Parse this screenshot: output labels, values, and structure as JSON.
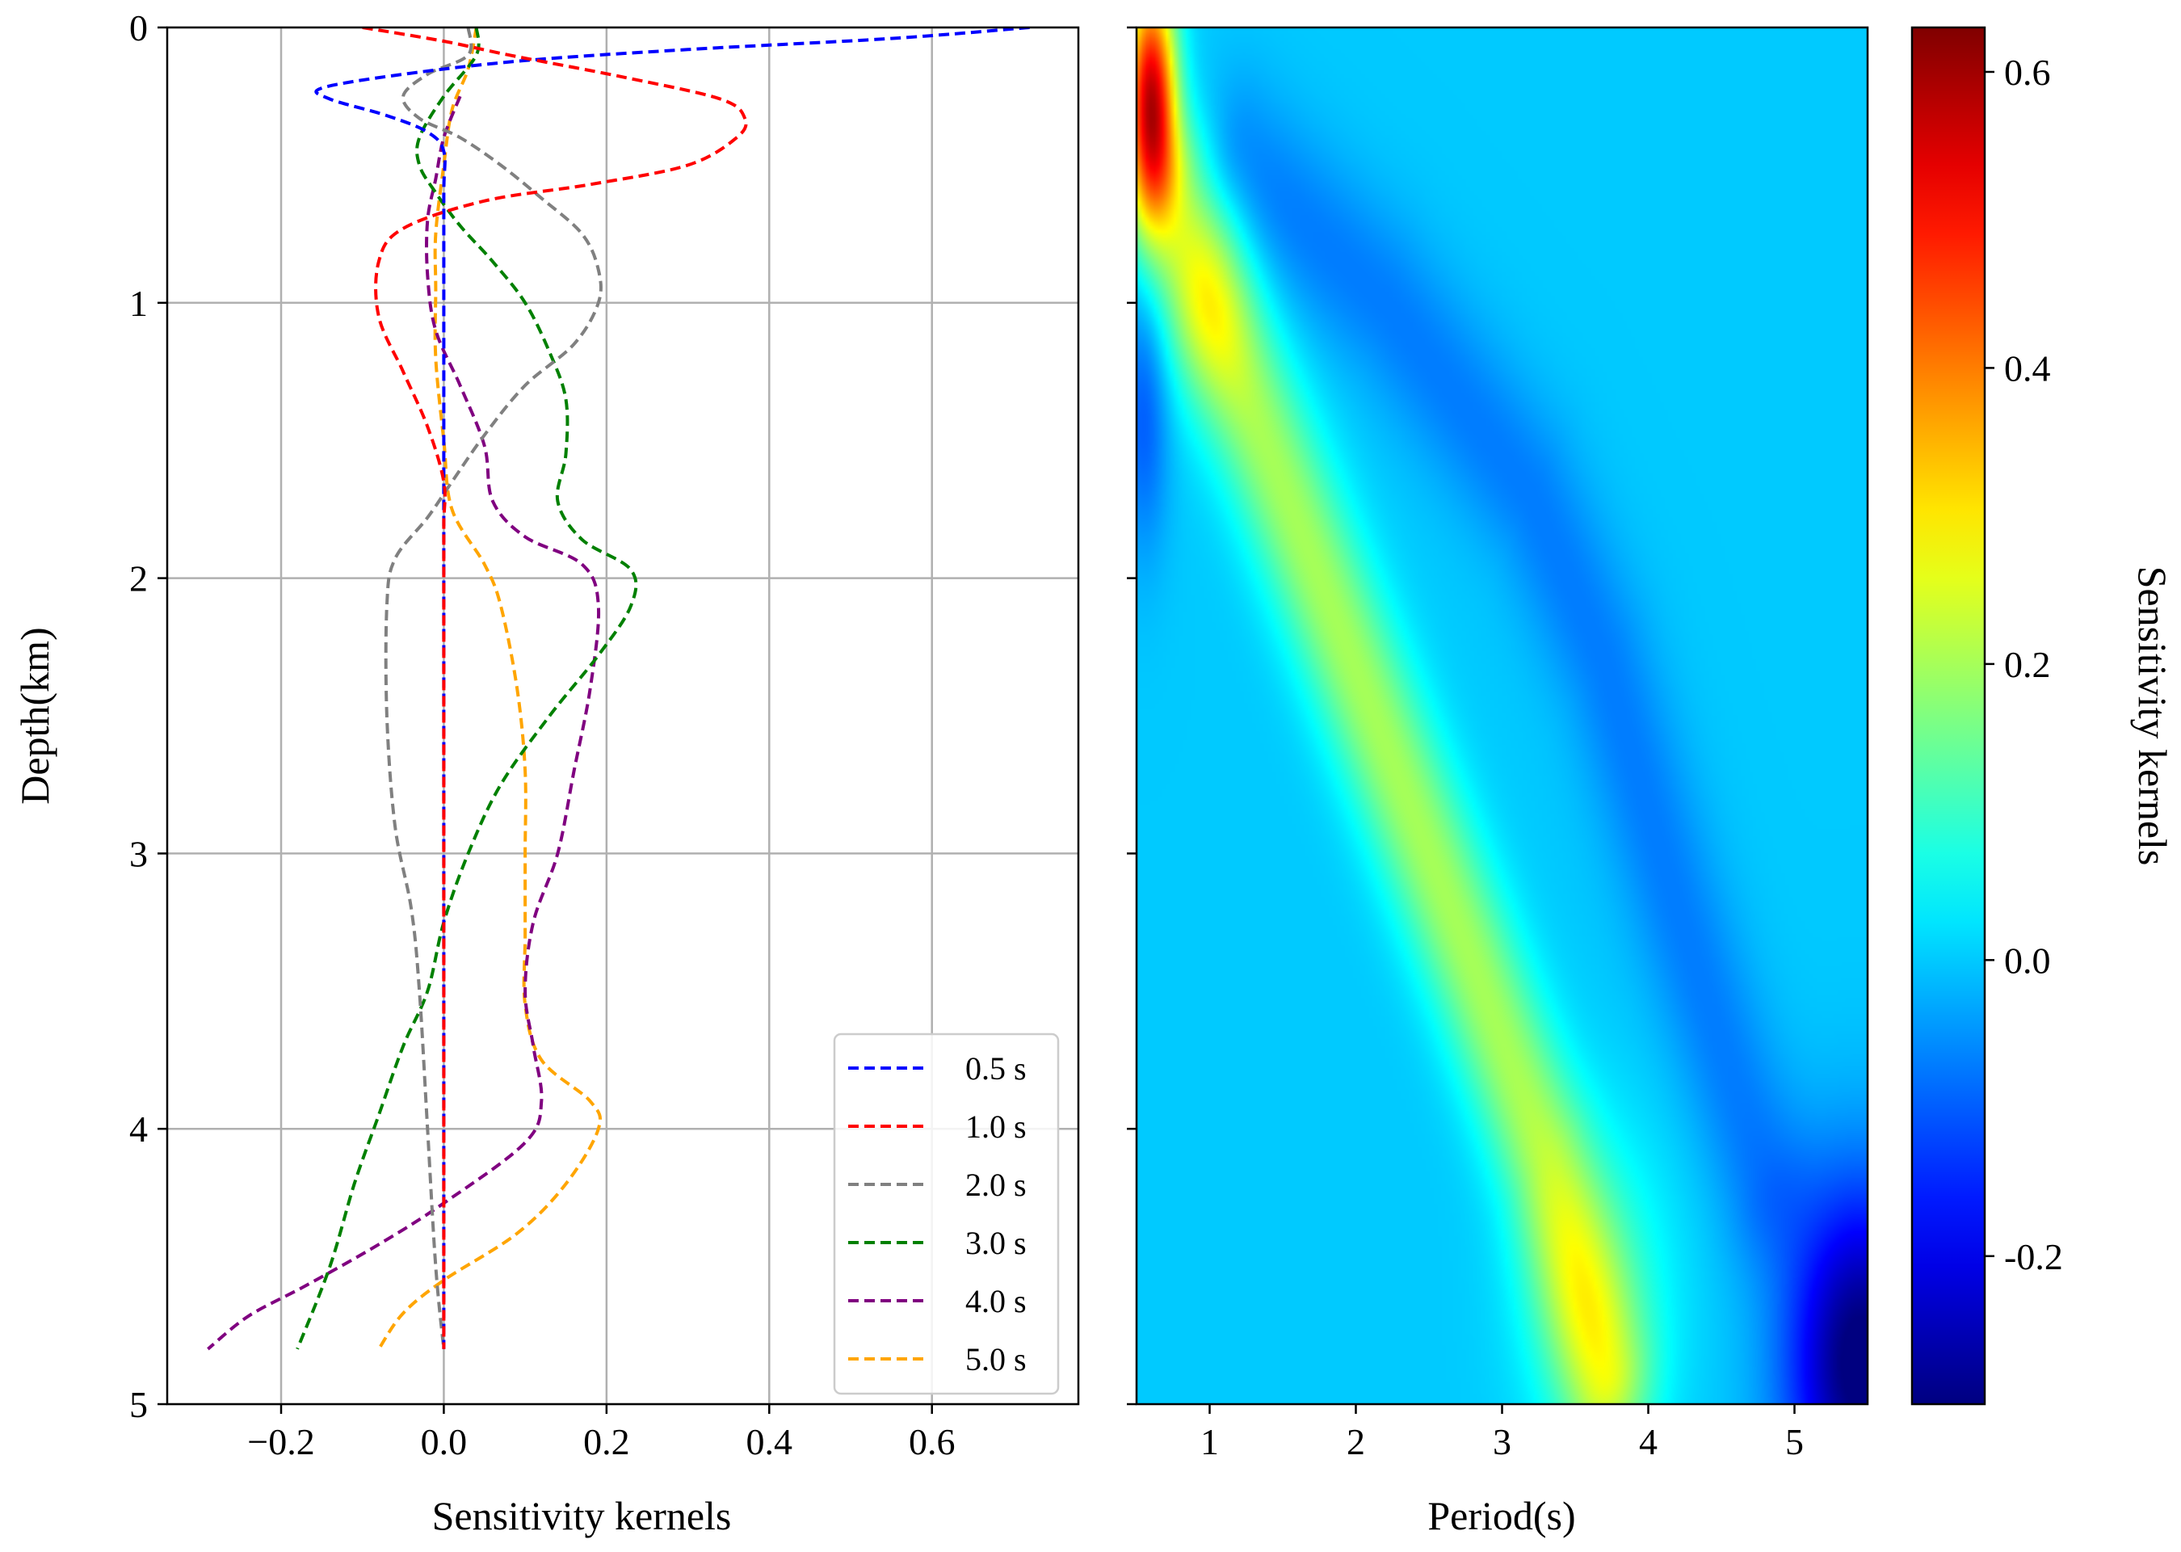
{
  "chart_data": [
    {
      "type": "line",
      "xlabel": "Sensitivity kernels",
      "ylabel": "Depth(km)",
      "xlim": [
        -0.34,
        0.78
      ],
      "ylim": [
        5,
        0
      ],
      "xticks": [
        -0.2,
        0.0,
        0.2,
        0.4,
        0.6
      ],
      "xtick_labels": [
        "−0.2",
        "0.0",
        "0.2",
        "0.4",
        "0.6"
      ],
      "yticks": [
        0,
        1,
        2,
        3,
        4,
        5
      ],
      "ytick_labels": [
        "0",
        "1",
        "2",
        "3",
        "4",
        "5"
      ],
      "grid": true,
      "legend_position": "bottom-right",
      "line_style": "dashed",
      "series": [
        {
          "name": "0.5 s",
          "label": "0.5 s",
          "color": "#0000ff",
          "points": [
            [
              0.72,
              0
            ],
            [
              0.55,
              0.04
            ],
            [
              0.3,
              0.08
            ],
            [
              0.1,
              0.12
            ],
            [
              -0.05,
              0.17
            ],
            [
              -0.15,
              0.22
            ],
            [
              -0.14,
              0.26
            ],
            [
              -0.07,
              0.32
            ],
            [
              -0.02,
              0.38
            ],
            [
              0.0,
              0.45
            ],
            [
              0.0,
              0.6
            ],
            [
              0.0,
              1.0
            ],
            [
              0.0,
              2.0
            ],
            [
              0.0,
              3.0
            ],
            [
              0.0,
              4.0
            ],
            [
              0.0,
              4.8
            ]
          ]
        },
        {
          "name": "1.0 s",
          "label": "1.0 s",
          "color": "#ff0000",
          "points": [
            [
              -0.1,
              0
            ],
            [
              0.0,
              0.05
            ],
            [
              0.08,
              0.1
            ],
            [
              0.22,
              0.18
            ],
            [
              0.34,
              0.26
            ],
            [
              0.37,
              0.33
            ],
            [
              0.36,
              0.4
            ],
            [
              0.3,
              0.5
            ],
            [
              0.18,
              0.57
            ],
            [
              0.05,
              0.63
            ],
            [
              -0.05,
              0.73
            ],
            [
              -0.08,
              0.85
            ],
            [
              -0.08,
              1.05
            ],
            [
              -0.05,
              1.25
            ],
            [
              -0.02,
              1.45
            ],
            [
              0.0,
              1.65
            ],
            [
              0.0,
              1.8
            ],
            [
              0.0,
              2.0
            ],
            [
              0.0,
              3.0
            ],
            [
              0.0,
              4.0
            ],
            [
              0.0,
              4.8
            ]
          ]
        },
        {
          "name": "2.0 s",
          "label": "2.0 s",
          "color": "#808080",
          "points": [
            [
              0.03,
              0.0
            ],
            [
              0.03,
              0.1
            ],
            [
              -0.02,
              0.17
            ],
            [
              -0.05,
              0.25
            ],
            [
              -0.03,
              0.33
            ],
            [
              0.02,
              0.4
            ],
            [
              0.07,
              0.5
            ],
            [
              0.12,
              0.62
            ],
            [
              0.17,
              0.75
            ],
            [
              0.19,
              0.88
            ],
            [
              0.19,
              1.0
            ],
            [
              0.16,
              1.15
            ],
            [
              0.1,
              1.3
            ],
            [
              0.05,
              1.48
            ],
            [
              0.01,
              1.65
            ],
            [
              -0.02,
              1.78
            ],
            [
              -0.06,
              1.93
            ],
            [
              -0.07,
              2.1
            ],
            [
              -0.07,
              2.5
            ],
            [
              -0.06,
              2.9
            ],
            [
              -0.04,
              3.2
            ],
            [
              -0.03,
              3.5
            ],
            [
              -0.02,
              4.0
            ],
            [
              -0.01,
              4.5
            ],
            [
              0.0,
              4.8
            ]
          ]
        },
        {
          "name": "3.0 s",
          "label": "3.0 s",
          "color": "#008000",
          "points": [
            [
              0.04,
              0.0
            ],
            [
              0.04,
              0.1
            ],
            [
              0.0,
              0.25
            ],
            [
              -0.03,
              0.4
            ],
            [
              -0.03,
              0.5
            ],
            [
              -0.01,
              0.6
            ],
            [
              0.02,
              0.72
            ],
            [
              0.06,
              0.85
            ],
            [
              0.1,
              1.0
            ],
            [
              0.13,
              1.18
            ],
            [
              0.15,
              1.35
            ],
            [
              0.15,
              1.55
            ],
            [
              0.14,
              1.72
            ],
            [
              0.17,
              1.86
            ],
            [
              0.23,
              1.97
            ],
            [
              0.23,
              2.1
            ],
            [
              0.19,
              2.28
            ],
            [
              0.13,
              2.5
            ],
            [
              0.07,
              2.75
            ],
            [
              0.03,
              3.0
            ],
            [
              0.0,
              3.25
            ],
            [
              -0.02,
              3.5
            ],
            [
              -0.05,
              3.7
            ],
            [
              -0.08,
              3.95
            ],
            [
              -0.11,
              4.2
            ],
            [
              -0.14,
              4.5
            ],
            [
              -0.18,
              4.8
            ]
          ]
        },
        {
          "name": "4.0 s",
          "label": "4.0 s",
          "color": "#800080",
          "points": [
            [
              0.02,
              0.25
            ],
            [
              0.0,
              0.4
            ],
            [
              -0.01,
              0.55
            ],
            [
              -0.02,
              0.7
            ],
            [
              -0.02,
              0.9
            ],
            [
              -0.01,
              1.1
            ],
            [
              0.02,
              1.3
            ],
            [
              0.05,
              1.52
            ],
            [
              0.06,
              1.72
            ],
            [
              0.1,
              1.85
            ],
            [
              0.17,
              1.95
            ],
            [
              0.19,
              2.1
            ],
            [
              0.18,
              2.4
            ],
            [
              0.16,
              2.7
            ],
            [
              0.14,
              3.0
            ],
            [
              0.11,
              3.25
            ],
            [
              0.1,
              3.5
            ],
            [
              0.11,
              3.7
            ],
            [
              0.12,
              3.9
            ],
            [
              0.1,
              4.05
            ],
            [
              0.0,
              4.27
            ],
            [
              -0.08,
              4.42
            ],
            [
              -0.17,
              4.57
            ],
            [
              -0.24,
              4.68
            ],
            [
              -0.29,
              4.8
            ]
          ]
        },
        {
          "name": "5.0 s",
          "label": "5.0 s",
          "color": "#ffa500",
          "points": [
            [
              0.04,
              0.0
            ],
            [
              0.03,
              0.15
            ],
            [
              0.01,
              0.3
            ],
            [
              0.0,
              0.5
            ],
            [
              -0.01,
              0.75
            ],
            [
              -0.01,
              0.95
            ],
            [
              -0.01,
              1.2
            ],
            [
              0.0,
              1.5
            ],
            [
              0.01,
              1.75
            ],
            [
              0.05,
              1.95
            ],
            [
              0.07,
              2.1
            ],
            [
              0.09,
              2.4
            ],
            [
              0.1,
              2.7
            ],
            [
              0.1,
              3.0
            ],
            [
              0.1,
              3.3
            ],
            [
              0.1,
              3.55
            ],
            [
              0.12,
              3.75
            ],
            [
              0.18,
              3.9
            ],
            [
              0.19,
              4.0
            ],
            [
              0.15,
              4.2
            ],
            [
              0.09,
              4.38
            ],
            [
              0.0,
              4.55
            ],
            [
              -0.05,
              4.67
            ],
            [
              -0.08,
              4.8
            ]
          ]
        }
      ]
    },
    {
      "type": "heatmap",
      "xlabel": "Period(s)",
      "ylabel": "Depth(km)",
      "xlim": [
        0.5,
        5.5
      ],
      "ylim": [
        5,
        0
      ],
      "xticks": [
        1,
        2,
        3,
        4,
        5
      ],
      "xtick_labels": [
        "1",
        "2",
        "3",
        "4",
        "5"
      ],
      "yticks": [
        0,
        1,
        2,
        3,
        4,
        5
      ],
      "colormap": "jet",
      "colorbar": {
        "label": "Sensitivity kernels",
        "range": [
          -0.3,
          0.63
        ],
        "ticks": [
          -0.2,
          0.0,
          0.2,
          0.4,
          0.6
        ],
        "tick_labels": [
          "-0.2",
          "0.0",
          "0.2",
          "0.4",
          "0.6"
        ]
      },
      "features": [
        {
          "type": "base",
          "value": 0.0
        },
        {
          "type": "peak",
          "period": 0.6,
          "depth": 0.25,
          "value": 0.55,
          "sx": 0.12,
          "sy": 0.3
        },
        {
          "type": "band_ridge",
          "value": 0.2,
          "path": [
            [
              0.75,
              0.6
            ],
            [
              1.0,
              1.0
            ],
            [
              1.6,
              1.8
            ],
            [
              2.2,
              2.6
            ],
            [
              2.8,
              3.4
            ],
            [
              3.3,
              4.1
            ],
            [
              3.7,
              4.9
            ]
          ],
          "width": 0.42
        },
        {
          "type": "peak",
          "period": 1.0,
          "depth": 1.0,
          "value": 0.1,
          "sx": 0.2,
          "sy": 0.25
        },
        {
          "type": "peak",
          "period": 3.65,
          "depth": 4.6,
          "value": 0.1,
          "sx": 0.35,
          "sy": 0.4
        },
        {
          "type": "band_ridge",
          "value": -0.07,
          "path": [
            [
              1.2,
              0.5
            ],
            [
              2.2,
              1.0
            ],
            [
              3.2,
              1.7
            ],
            [
              3.7,
              2.3
            ],
            [
              4.2,
              3.2
            ],
            [
              4.8,
              4.2
            ]
          ],
          "width": 0.45
        },
        {
          "type": "peak",
          "period": 0.55,
          "depth": 1.4,
          "value": -0.1,
          "sx": 0.12,
          "sy": 0.35
        },
        {
          "type": "peak",
          "period": 5.45,
          "depth": 4.85,
          "value": -0.32,
          "sx": 0.35,
          "sy": 0.45
        }
      ]
    }
  ]
}
